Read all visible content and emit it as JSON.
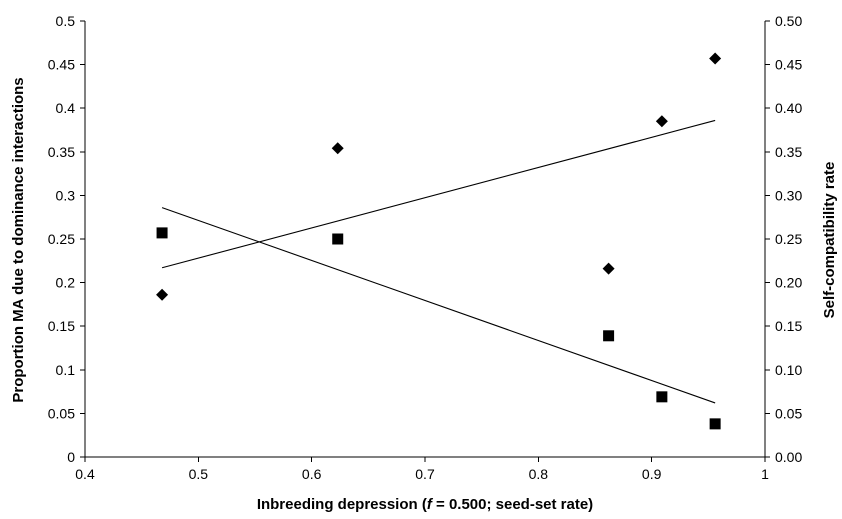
{
  "chart_data": {
    "type": "scatter",
    "title": "",
    "xlabel_parts": [
      "Inbreeding depression (",
      "f",
      " = 0.500; seed-set rate)"
    ],
    "ylabel_left": "Proportion MA due to dominance interactions",
    "ylabel_right": "Self-compatibility rate",
    "xlim": [
      0.4,
      1
    ],
    "ylim_left": [
      0,
      0.5
    ],
    "ylim_right": [
      0,
      0.5
    ],
    "x_ticks": [
      "0.4",
      "0.5",
      "0.6",
      "0.7",
      "0.8",
      "0.9",
      "1"
    ],
    "y_ticks_left": [
      "0",
      "0.05",
      "0.1",
      "0.15",
      "0.2",
      "0.25",
      "0.3",
      "0.35",
      "0.4",
      "0.45",
      "0.5"
    ],
    "y_ticks_right": [
      "0.00",
      "0.05",
      "0.10",
      "0.15",
      "0.20",
      "0.25",
      "0.30",
      "0.35",
      "0.40",
      "0.45",
      "0.50"
    ],
    "grid": false,
    "legend": "none",
    "series": [
      {
        "marker": "diamond",
        "axis": "left",
        "color": "#000000",
        "x": [
          0.468,
          0.623,
          0.862,
          0.909,
          0.956
        ],
        "y": [
          0.186,
          0.354,
          0.216,
          0.385,
          0.457
        ],
        "trendline": {
          "x": [
            0.468,
            0.956
          ],
          "y": [
            0.217,
            0.386
          ]
        }
      },
      {
        "marker": "square",
        "axis": "right",
        "color": "#000000",
        "x": [
          0.468,
          0.623,
          0.862,
          0.909,
          0.956
        ],
        "y": [
          0.257,
          0.25,
          0.139,
          0.069,
          0.038
        ],
        "trendline": {
          "x": [
            0.468,
            0.956
          ],
          "y": [
            0.286,
            0.062
          ]
        }
      }
    ]
  }
}
